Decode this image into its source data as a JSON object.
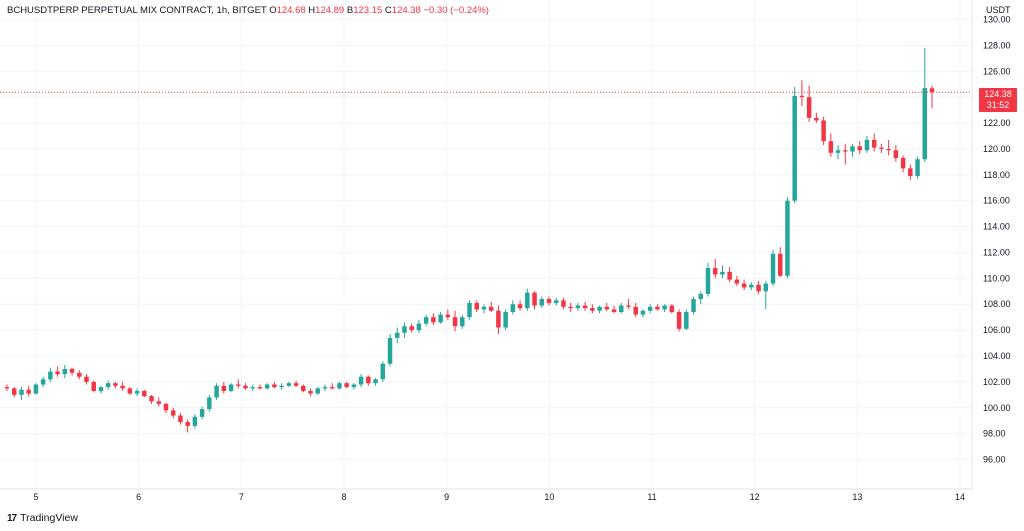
{
  "header": {
    "symbol": "BCHUSDTPERP PERPETUAL MIX CONTRACT, 1h, BITGET",
    "o_label": "O",
    "o_value": "124.68",
    "h_label": "H",
    "h_value": "124.89",
    "l_label": "B",
    "l_value": "123.15",
    "c_label": "C",
    "c_value": "124.38",
    "change": "−0.30 (−0.24%)"
  },
  "brand": "TradingView",
  "price_tag": {
    "price": "124.38",
    "countdown": "31:52"
  },
  "colors": {
    "up": "#26a69a",
    "down": "#f23645",
    "grid": "#f0f3fa",
    "axis": "#b2b5be"
  },
  "chart_data": {
    "type": "candlestick",
    "unit": "USDT",
    "ylim": [
      95,
      130
    ],
    "y_ticks": [
      "96.00",
      "98.00",
      "100.00",
      "102.00",
      "104.00",
      "106.00",
      "108.00",
      "110.00",
      "112.00",
      "114.00",
      "116.00",
      "118.00",
      "120.00",
      "122.00",
      "124.00",
      "126.00",
      "128.00",
      "130.00"
    ],
    "x_ticks": [
      "5",
      "6",
      "7",
      "8",
      "9",
      "10",
      "11",
      "12",
      "13",
      "14"
    ],
    "last_price": 124.38,
    "candles": [
      [
        101.6,
        101.8,
        101.3,
        101.5
      ],
      [
        101.5,
        101.6,
        100.8,
        101.0
      ],
      [
        101.0,
        101.6,
        100.6,
        101.4
      ],
      [
        101.4,
        101.7,
        100.9,
        101.1
      ],
      [
        101.1,
        101.9,
        101.0,
        101.8
      ],
      [
        101.8,
        102.4,
        101.6,
        102.2
      ],
      [
        102.2,
        103.1,
        102.0,
        102.8
      ],
      [
        102.8,
        103.2,
        102.4,
        102.6
      ],
      [
        102.6,
        103.3,
        102.3,
        103.0
      ],
      [
        103.0,
        103.1,
        102.5,
        102.7
      ],
      [
        102.7,
        102.9,
        102.2,
        102.4
      ],
      [
        102.4,
        102.6,
        101.8,
        102.0
      ],
      [
        102.0,
        102.1,
        101.2,
        101.3
      ],
      [
        101.3,
        101.7,
        101.1,
        101.6
      ],
      [
        101.6,
        102.1,
        101.4,
        101.9
      ],
      [
        101.9,
        102.0,
        101.5,
        101.7
      ],
      [
        101.7,
        102.0,
        101.3,
        101.5
      ],
      [
        101.5,
        101.6,
        101.0,
        101.1
      ],
      [
        101.1,
        101.5,
        100.9,
        101.3
      ],
      [
        101.3,
        101.4,
        100.8,
        100.9
      ],
      [
        100.9,
        101.0,
        100.3,
        100.5
      ],
      [
        100.5,
        100.8,
        100.1,
        100.3
      ],
      [
        100.3,
        100.4,
        99.6,
        99.8
      ],
      [
        99.8,
        100.0,
        99.2,
        99.4
      ],
      [
        99.4,
        99.6,
        98.7,
        98.9
      ],
      [
        98.9,
        99.1,
        98.1,
        98.6
      ],
      [
        98.6,
        99.5,
        98.4,
        99.3
      ],
      [
        99.3,
        100.1,
        99.1,
        99.9
      ],
      [
        99.9,
        101.0,
        99.7,
        100.8
      ],
      [
        100.8,
        101.9,
        100.6,
        101.7
      ],
      [
        101.7,
        102.0,
        101.1,
        101.3
      ],
      [
        101.3,
        101.9,
        101.2,
        101.8
      ],
      [
        101.8,
        102.2,
        101.5,
        101.7
      ],
      [
        101.7,
        101.9,
        101.4,
        101.5
      ],
      [
        101.5,
        101.8,
        101.3,
        101.6
      ],
      [
        101.6,
        101.8,
        101.4,
        101.5
      ],
      [
        101.5,
        101.9,
        101.4,
        101.8
      ],
      [
        101.8,
        102.0,
        101.5,
        101.6
      ],
      [
        101.6,
        101.9,
        101.4,
        101.7
      ],
      [
        101.7,
        102.0,
        101.6,
        101.9
      ],
      [
        101.9,
        102.1,
        101.6,
        101.7
      ],
      [
        101.7,
        101.8,
        101.2,
        101.3
      ],
      [
        101.3,
        101.5,
        100.9,
        101.1
      ],
      [
        101.1,
        101.6,
        101.0,
        101.5
      ],
      [
        101.5,
        101.8,
        101.3,
        101.6
      ],
      [
        101.6,
        101.9,
        101.4,
        101.5
      ],
      [
        101.5,
        102.0,
        101.4,
        101.9
      ],
      [
        101.9,
        102.0,
        101.5,
        101.6
      ],
      [
        101.6,
        101.9,
        101.4,
        101.8
      ],
      [
        101.8,
        102.6,
        101.6,
        102.4
      ],
      [
        102.4,
        102.5,
        101.7,
        101.9
      ],
      [
        101.9,
        102.3,
        101.7,
        102.2
      ],
      [
        102.2,
        103.6,
        102.0,
        103.4
      ],
      [
        103.4,
        105.7,
        103.2,
        105.4
      ],
      [
        105.4,
        106.2,
        105.0,
        105.8
      ],
      [
        105.8,
        106.6,
        105.4,
        106.3
      ],
      [
        106.3,
        106.5,
        105.8,
        106.0
      ],
      [
        106.0,
        106.8,
        105.8,
        106.5
      ],
      [
        106.5,
        107.2,
        106.3,
        107.0
      ],
      [
        107.0,
        107.3,
        106.4,
        106.6
      ],
      [
        106.6,
        107.4,
        106.5,
        107.2
      ],
      [
        107.2,
        107.6,
        106.8,
        107.0
      ],
      [
        107.0,
        107.5,
        105.9,
        106.3
      ],
      [
        106.3,
        107.2,
        106.1,
        107.0
      ],
      [
        107.0,
        108.3,
        106.8,
        108.1
      ],
      [
        108.1,
        108.3,
        107.4,
        107.6
      ],
      [
        107.6,
        108.0,
        107.3,
        107.8
      ],
      [
        107.8,
        108.2,
        107.4,
        107.5
      ],
      [
        107.5,
        107.9,
        105.7,
        106.2
      ],
      [
        106.2,
        107.6,
        106.0,
        107.4
      ],
      [
        107.4,
        108.3,
        107.2,
        108.0
      ],
      [
        108.0,
        108.3,
        107.5,
        107.7
      ],
      [
        107.7,
        109.2,
        107.5,
        108.9
      ],
      [
        108.9,
        109.0,
        107.6,
        107.9
      ],
      [
        107.9,
        108.6,
        107.7,
        108.4
      ],
      [
        108.4,
        108.6,
        107.9,
        108.1
      ],
      [
        108.1,
        108.5,
        107.9,
        108.3
      ],
      [
        108.3,
        108.5,
        107.6,
        107.8
      ],
      [
        107.8,
        108.1,
        107.4,
        107.7
      ],
      [
        107.7,
        108.1,
        107.5,
        107.9
      ],
      [
        107.9,
        108.2,
        107.5,
        107.7
      ],
      [
        107.7,
        108.0,
        107.3,
        107.5
      ],
      [
        107.5,
        107.9,
        107.3,
        107.8
      ],
      [
        107.8,
        108.1,
        107.5,
        107.6
      ],
      [
        107.6,
        107.9,
        107.3,
        107.4
      ],
      [
        107.4,
        108.1,
        107.3,
        107.9
      ],
      [
        107.9,
        108.4,
        107.6,
        107.8
      ],
      [
        107.8,
        108.1,
        107.0,
        107.2
      ],
      [
        107.2,
        107.6,
        107.0,
        107.5
      ],
      [
        107.5,
        108.0,
        107.3,
        107.8
      ],
      [
        107.8,
        108.0,
        107.5,
        107.6
      ],
      [
        107.6,
        108.0,
        107.4,
        107.9
      ],
      [
        107.9,
        108.0,
        107.3,
        107.4
      ],
      [
        107.4,
        107.6,
        105.9,
        106.1
      ],
      [
        106.1,
        107.6,
        106.0,
        107.4
      ],
      [
        107.4,
        108.6,
        107.2,
        108.4
      ],
      [
        108.4,
        109.0,
        108.0,
        108.8
      ],
      [
        108.8,
        111.2,
        108.6,
        110.8
      ],
      [
        110.8,
        111.5,
        110.0,
        110.3
      ],
      [
        110.3,
        111.0,
        110.0,
        110.5
      ],
      [
        110.5,
        110.9,
        109.7,
        109.9
      ],
      [
        109.9,
        110.2,
        109.4,
        109.6
      ],
      [
        109.6,
        109.9,
        109.1,
        109.3
      ],
      [
        109.3,
        109.7,
        109.1,
        109.5
      ],
      [
        109.5,
        109.8,
        108.8,
        109.0
      ],
      [
        109.0,
        109.8,
        107.6,
        109.6
      ],
      [
        109.6,
        112.2,
        109.4,
        111.9
      ],
      [
        111.9,
        112.4,
        110.1,
        110.2
      ],
      [
        110.2,
        116.3,
        110.0,
        116.0
      ],
      [
        116.0,
        124.8,
        115.8,
        124.1
      ],
      [
        124.1,
        125.3,
        123.3,
        124.0
      ],
      [
        124.0,
        124.9,
        122.1,
        122.4
      ],
      [
        122.4,
        122.8,
        122.0,
        122.2
      ],
      [
        122.2,
        122.5,
        120.3,
        120.6
      ],
      [
        120.6,
        121.2,
        119.4,
        119.7
      ],
      [
        119.7,
        120.3,
        119.2,
        119.9
      ],
      [
        119.9,
        120.4,
        118.8,
        119.8
      ],
      [
        119.8,
        120.4,
        119.4,
        120.2
      ],
      [
        120.2,
        120.6,
        119.6,
        119.9
      ],
      [
        119.9,
        121.0,
        119.7,
        120.7
      ],
      [
        120.7,
        121.2,
        119.8,
        120.1
      ],
      [
        120.1,
        120.4,
        119.7,
        120.0
      ],
      [
        120.0,
        120.7,
        119.5,
        119.9
      ],
      [
        119.9,
        120.3,
        119.0,
        119.3
      ],
      [
        119.3,
        119.5,
        118.2,
        118.5
      ],
      [
        118.5,
        118.8,
        117.6,
        117.9
      ],
      [
        117.9,
        119.4,
        117.7,
        119.2
      ],
      [
        119.2,
        127.8,
        119.0,
        124.7
      ],
      [
        124.68,
        124.89,
        123.15,
        124.38
      ]
    ]
  }
}
